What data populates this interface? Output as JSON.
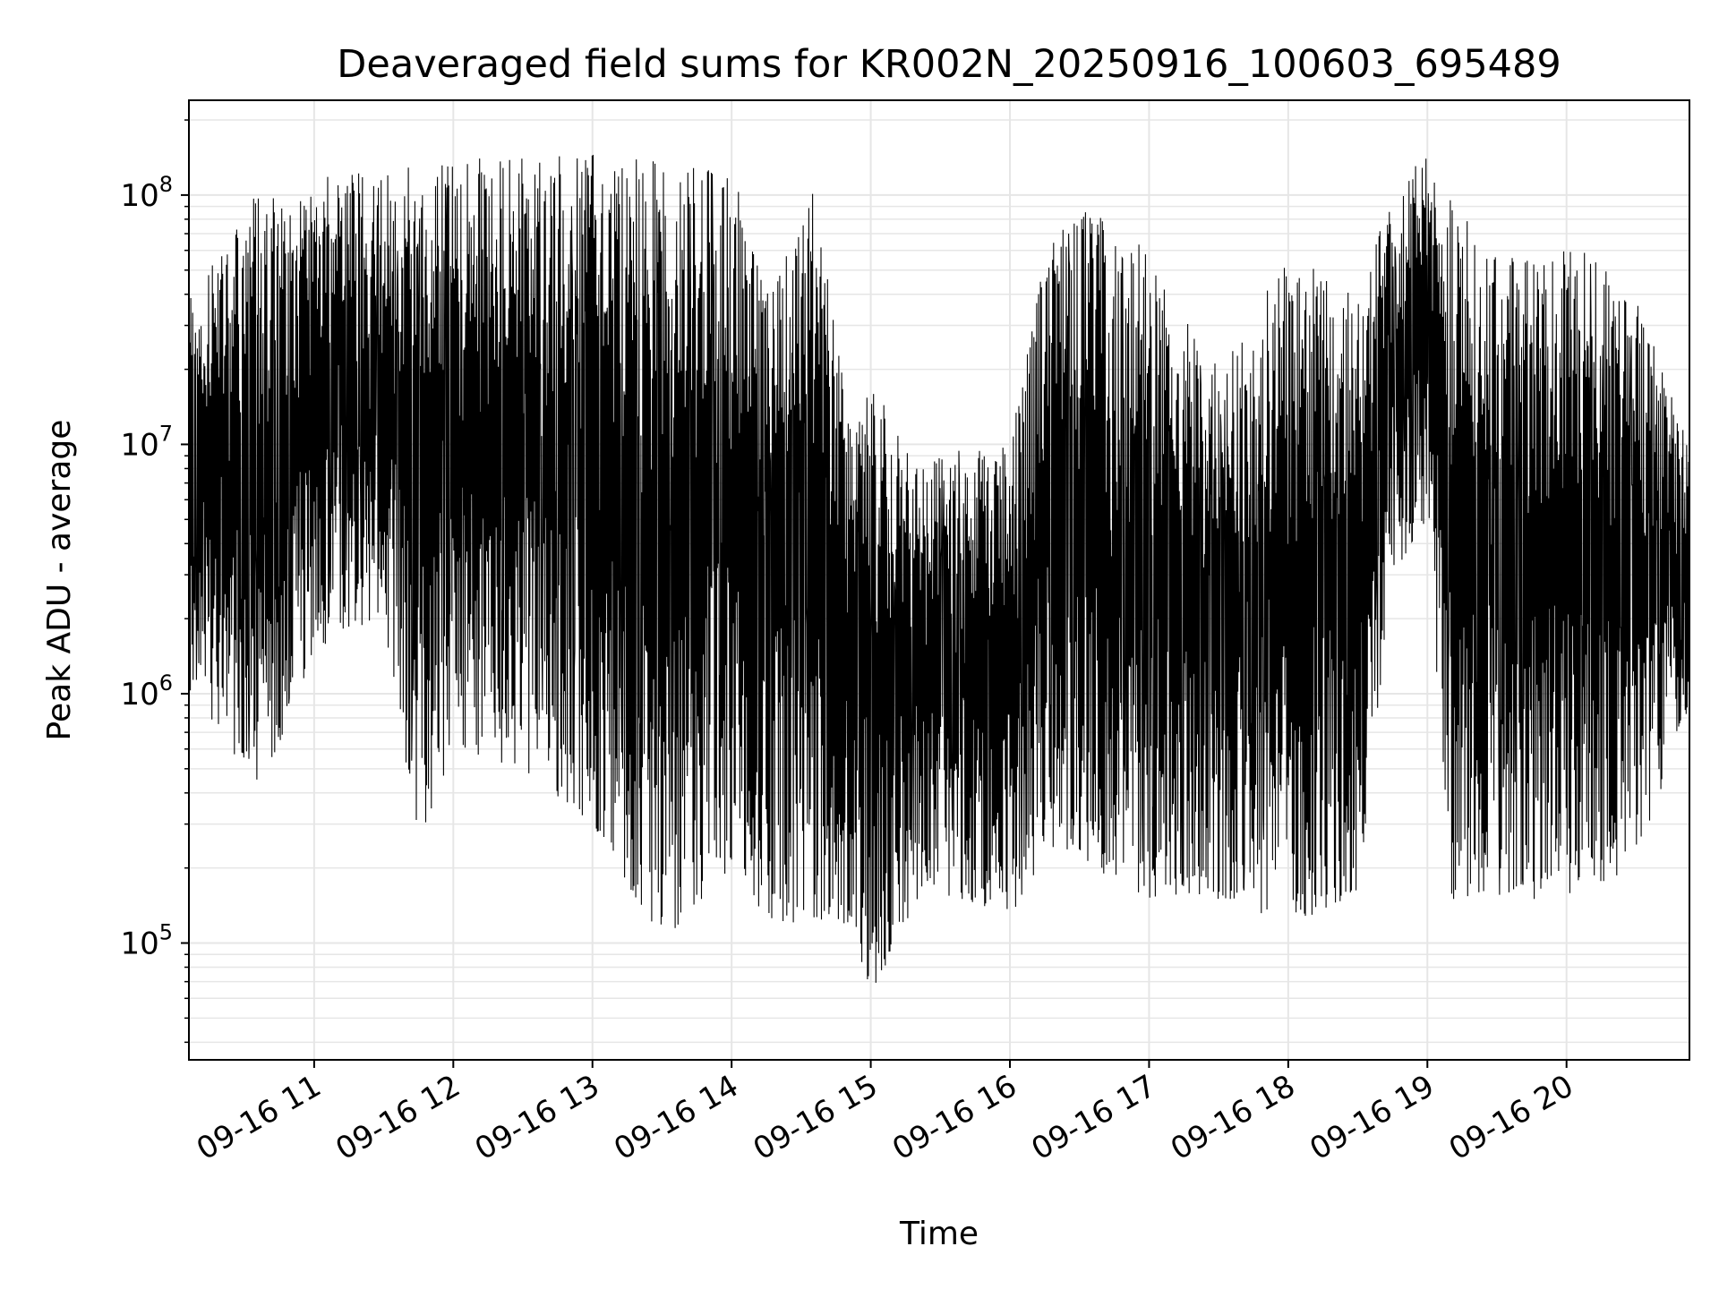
{
  "chart_data": {
    "type": "line",
    "title": "Deaveraged field sums for KR002N_20250916_100603_695489",
    "xlabel": "Time",
    "ylabel": "Peak ADU - average",
    "yscale": "log",
    "grid": true,
    "line_color": "#000000",
    "grid_color": "#e6e6e6",
    "xlim": [
      "2025-09-16 10:06",
      "2025-09-16 20:53"
    ],
    "ylim": [
      34000,
      240000000
    ],
    "x_ticks": [
      {
        "value": "2025-09-16 11:00",
        "label": "09-16 11"
      },
      {
        "value": "2025-09-16 12:00",
        "label": "09-16 12"
      },
      {
        "value": "2025-09-16 13:00",
        "label": "09-16 13"
      },
      {
        "value": "2025-09-16 14:00",
        "label": "09-16 14"
      },
      {
        "value": "2025-09-16 15:00",
        "label": "09-16 15"
      },
      {
        "value": "2025-09-16 16:00",
        "label": "09-16 16"
      },
      {
        "value": "2025-09-16 17:00",
        "label": "09-16 17"
      },
      {
        "value": "2025-09-16 18:00",
        "label": "09-16 18"
      },
      {
        "value": "2025-09-16 19:00",
        "label": "09-16 19"
      },
      {
        "value": "2025-09-16 20:00",
        "label": "09-16 20"
      }
    ],
    "y_ticks": [
      {
        "value": 100000,
        "base": "10",
        "exp": "5"
      },
      {
        "value": 1000000,
        "base": "10",
        "exp": "6"
      },
      {
        "value": 10000000,
        "base": "10",
        "exp": "7"
      },
      {
        "value": 100000000,
        "base": "10",
        "exp": "8"
      }
    ],
    "envelope": [
      {
        "time": "2025-09-16 10:06",
        "high": 40000000,
        "low": 1000000
      },
      {
        "time": "2025-09-16 10:20",
        "high": 60000000,
        "low": 700000
      },
      {
        "time": "2025-09-16 10:35",
        "high": 110000000,
        "low": 400000
      },
      {
        "time": "2025-09-16 10:50",
        "high": 90000000,
        "low": 800000
      },
      {
        "time": "2025-09-16 11:00",
        "high": 120000000,
        "low": 1500000
      },
      {
        "time": "2025-09-16 11:30",
        "high": 130000000,
        "low": 2000000
      },
      {
        "time": "2025-09-16 11:45",
        "high": 130000000,
        "low": 250000
      },
      {
        "time": "2025-09-16 12:00",
        "high": 140000000,
        "low": 600000
      },
      {
        "time": "2025-09-16 12:30",
        "high": 145000000,
        "low": 500000
      },
      {
        "time": "2025-09-16 13:00",
        "high": 145000000,
        "low": 300000
      },
      {
        "time": "2025-09-16 13:30",
        "high": 140000000,
        "low": 100000
      },
      {
        "time": "2025-09-16 14:00",
        "high": 130000000,
        "low": 200000
      },
      {
        "time": "2025-09-16 14:15",
        "high": 40000000,
        "low": 120000
      },
      {
        "time": "2025-09-16 14:35",
        "high": 110000000,
        "low": 120000
      },
      {
        "time": "2025-09-16 14:50",
        "high": 15000000,
        "low": 120000
      },
      {
        "time": "2025-09-16 15:00",
        "high": 20000000,
        "low": 60000
      },
      {
        "time": "2025-09-16 15:20",
        "high": 8000000,
        "low": 150000
      },
      {
        "time": "2025-09-16 15:40",
        "high": 10000000,
        "low": 150000
      },
      {
        "time": "2025-09-16 16:00",
        "high": 10000000,
        "low": 130000
      },
      {
        "time": "2025-09-16 16:15",
        "high": 60000000,
        "low": 200000
      },
      {
        "time": "2025-09-16 16:35",
        "high": 100000000,
        "low": 200000
      },
      {
        "time": "2025-09-16 17:00",
        "high": 60000000,
        "low": 150000
      },
      {
        "time": "2025-09-16 17:30",
        "high": 20000000,
        "low": 150000
      },
      {
        "time": "2025-09-16 18:00",
        "high": 60000000,
        "low": 120000
      },
      {
        "time": "2025-09-16 18:30",
        "high": 40000000,
        "low": 150000
      },
      {
        "time": "2025-09-16 18:45",
        "high": 100000000,
        "low": 3000000
      },
      {
        "time": "2025-09-16 19:00",
        "high": 150000000,
        "low": 5000000
      },
      {
        "time": "2025-09-16 19:10",
        "high": 100000000,
        "low": 150000
      },
      {
        "time": "2025-09-16 19:40",
        "high": 60000000,
        "low": 150000
      },
      {
        "time": "2025-09-16 20:00",
        "high": 70000000,
        "low": 150000
      },
      {
        "time": "2025-09-16 20:30",
        "high": 40000000,
        "low": 200000
      },
      {
        "time": "2025-09-16 20:53",
        "high": 10000000,
        "low": 900000
      }
    ]
  }
}
